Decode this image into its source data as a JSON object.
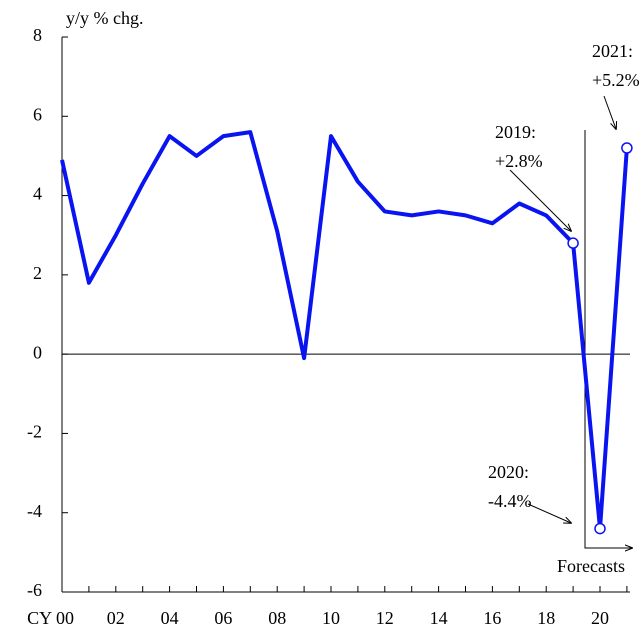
{
  "chart_data": {
    "type": "line",
    "y_label": "y/y % chg.",
    "categories": [
      "CY 00",
      null,
      "02",
      null,
      "04",
      null,
      "06",
      null,
      "08",
      null,
      "10",
      null,
      "12",
      null,
      "14",
      null,
      "16",
      null,
      "18",
      null,
      "20",
      null
    ],
    "series": [
      {
        "name": "y/y % chg.",
        "color": "#0a14f0",
        "values": [
          4.9,
          1.8,
          3.0,
          4.3,
          5.5,
          5.0,
          5.5,
          5.6,
          3.1,
          -0.1,
          5.5,
          4.35,
          3.6,
          3.5,
          3.6,
          3.5,
          3.3,
          3.8,
          3.5,
          2.8,
          -4.4,
          5.2
        ]
      }
    ],
    "ylim": [
      -6,
      8
    ],
    "yticks": [
      -6,
      -4,
      -2,
      0,
      2,
      4,
      6,
      8
    ],
    "annotations": [
      {
        "lines": [
          "2019:",
          "+2.8%"
        ]
      },
      {
        "lines": [
          "2020:",
          "-4.4%"
        ]
      },
      {
        "lines": [
          "2021:",
          "+5.2%"
        ]
      },
      {
        "lines": [
          "Forecasts"
        ]
      }
    ]
  }
}
